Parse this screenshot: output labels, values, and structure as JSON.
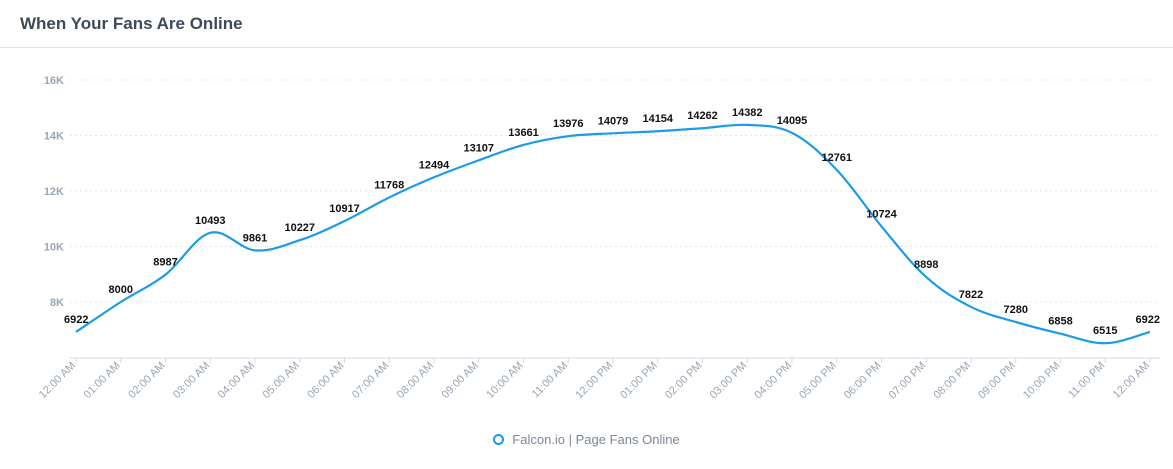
{
  "header": {
    "title": "When Your Fans Are Online"
  },
  "legend": {
    "label": "Falcon.io | Page Fans Online",
    "icon": "circle-marker-icon"
  },
  "colors": {
    "line": "#1c9be8",
    "grid": "#e3e7eb",
    "tick": "#9aa6b2",
    "label": "#111111"
  },
  "chart_data": {
    "type": "line",
    "title": "When Your Fans Are Online",
    "categories": [
      "12:00 AM",
      "01:00 AM",
      "02:00 AM",
      "03:00 AM",
      "04:00 AM",
      "05:00 AM",
      "06:00 AM",
      "07:00 AM",
      "08:00 AM",
      "09:00 AM",
      "10:00 AM",
      "11:00 AM",
      "12:00 PM",
      "01:00 PM",
      "02:00 PM",
      "03:00 PM",
      "04:00 PM",
      "05:00 PM",
      "06:00 PM",
      "07:00 PM",
      "08:00 PM",
      "09:00 PM",
      "10:00 PM",
      "11:00 PM",
      "12:00 AM"
    ],
    "series": [
      {
        "name": "Falcon.io | Page Fans Online",
        "values": [
          6922,
          8000,
          8987,
          10493,
          9861,
          10227,
          10917,
          11768,
          12494,
          13107,
          13661,
          13976,
          14079,
          14154,
          14262,
          14382,
          14095,
          12761,
          10724,
          8898,
          7822,
          7280,
          6858,
          6515,
          6922
        ]
      }
    ],
    "yticks": [
      8000,
      10000,
      12000,
      14000,
      16000
    ],
    "ytick_labels": [
      "8K",
      "10K",
      "12K",
      "14K",
      "16K"
    ],
    "ylim": [
      6000,
      16500
    ],
    "grid": true,
    "legend_position": "bottom-center"
  }
}
